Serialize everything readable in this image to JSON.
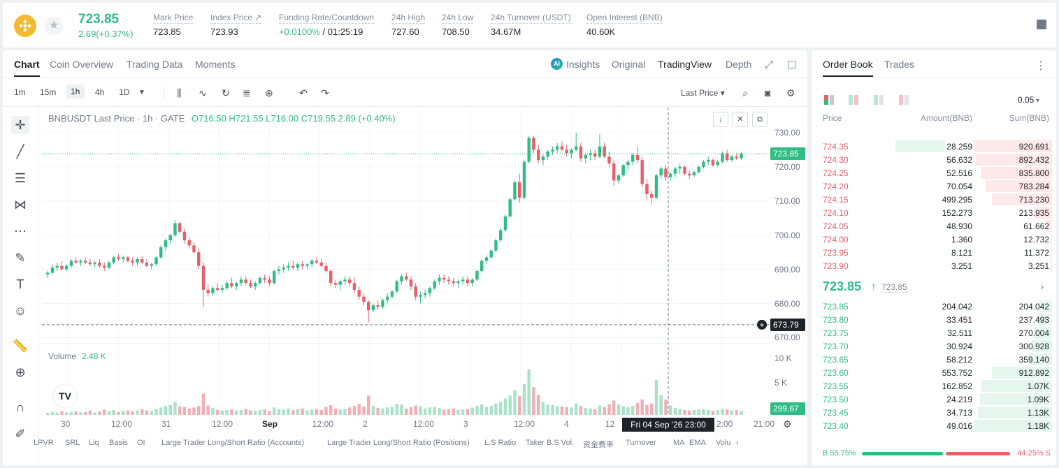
{
  "header": {
    "price": "723.85",
    "change": "2.69(+0.37%)",
    "stats": [
      {
        "label": "Mark Price",
        "value": "723.85"
      },
      {
        "label": "Index Price ↗",
        "value": "723.93"
      },
      {
        "label": "Funding Rate/Countdown",
        "value": "+0.0100%",
        "value2": " / 01:25:19"
      },
      {
        "label": "24h High",
        "value": "727.60"
      },
      {
        "label": "24h Low",
        "value": "708.50"
      },
      {
        "label": "24h Turnover (USDT)",
        "value": "34.67M"
      },
      {
        "label": "Open Interest (BNB)",
        "value": "40.60K"
      }
    ]
  },
  "chart_tabs": [
    "Chart",
    "Coin Overview",
    "Trading Data",
    "Moments"
  ],
  "view_tabs": [
    "Insights",
    "Original",
    "TradingView",
    "Depth"
  ],
  "timeframes": [
    "1m",
    "15m",
    "1h",
    "4h",
    "1D"
  ],
  "toolbar": {
    "price_type": "Last Price ▾"
  },
  "legend": {
    "symbol": "BNBUSDT Last Price · 1h · GATE",
    "ohlc": "O716.50  H721.55  L716.00  C719.55  2.89 (+0.40%)",
    "volume_label": "Volume",
    "volume_value": "2.48 K"
  },
  "yaxis": {
    "ticks": [
      "730.00",
      "720.00",
      "710.00",
      "700.00",
      "690.00",
      "680.00",
      "670.00"
    ],
    "vol_ticks": [
      "10 K",
      "5 K"
    ],
    "last_label": "723.85",
    "cross_label": "673.79",
    "vol_label": "299.67"
  },
  "xaxis": {
    "ticks": [
      "30",
      "12:00",
      "31",
      "12:00",
      "Sep",
      "12:00",
      "2",
      "12:00",
      "3",
      "12:00",
      "4",
      "12",
      "2:00",
      "21:00"
    ],
    "crosshair_time": "Fri 04 Sep '26   23:00"
  },
  "indicators": [
    "LPVR",
    "SRL",
    "Liq",
    "Basis",
    "OI",
    "Large Trader Long/Short Ratio (Accounts)",
    "Large Trader Long/Short Ratio (Positions)",
    "L.S Ratio",
    "Taker B.S Vol.",
    "资金费率",
    "Turnover",
    "MA",
    "EMA",
    "Volu",
    "›"
  ],
  "colors": {
    "up": "#2ebd85",
    "down": "#e65f6b",
    "brand": "#f3ba2f"
  },
  "chart_data": {
    "type": "candlestick",
    "symbol": "BNBUSDT",
    "interval": "1h",
    "ylim": [
      670,
      730
    ],
    "candles": [
      [
        688.5,
        689.5,
        687.5,
        689.0
      ],
      [
        689.0,
        691.5,
        688.5,
        690.5
      ],
      [
        690.5,
        692.0,
        689.5,
        691.0
      ],
      [
        691.0,
        692.5,
        690.0,
        690.0
      ],
      [
        690.0,
        691.5,
        689.5,
        691.0
      ],
      [
        691.0,
        693.0,
        690.5,
        692.5
      ],
      [
        692.5,
        693.5,
        691.5,
        692.0
      ],
      [
        692.0,
        693.0,
        691.0,
        692.5
      ],
      [
        692.5,
        693.5,
        691.5,
        692.0
      ],
      [
        692.0,
        693.0,
        691.0,
        691.5
      ],
      [
        691.5,
        692.5,
        690.5,
        692.0
      ],
      [
        692.0,
        693.0,
        690.5,
        691.0
      ],
      [
        691.0,
        692.0,
        689.5,
        690.5
      ],
      [
        690.5,
        692.5,
        690.0,
        692.0
      ],
      [
        692.0,
        694.0,
        691.5,
        693.5
      ],
      [
        693.5,
        694.5,
        692.5,
        693.0
      ],
      [
        693.0,
        694.0,
        692.0,
        693.5
      ],
      [
        693.5,
        694.0,
        692.0,
        692.5
      ],
      [
        692.5,
        693.5,
        691.0,
        692.0
      ],
      [
        692.0,
        693.5,
        691.0,
        693.0
      ],
      [
        693.0,
        694.0,
        691.5,
        692.0
      ],
      [
        692.0,
        693.0,
        690.5,
        691.0
      ],
      [
        691.0,
        692.0,
        690.0,
        691.5
      ],
      [
        691.5,
        694.0,
        691.0,
        693.5
      ],
      [
        693.5,
        697.0,
        693.0,
        696.5
      ],
      [
        696.5,
        699.0,
        695.5,
        698.5
      ],
      [
        698.5,
        700.5,
        697.5,
        700.0
      ],
      [
        700.0,
        704.5,
        699.5,
        703.5
      ],
      [
        703.5,
        704.0,
        700.5,
        701.0
      ],
      [
        701.0,
        702.0,
        697.5,
        698.5
      ],
      [
        698.5,
        699.5,
        696.0,
        697.0
      ],
      [
        697.0,
        698.0,
        694.5,
        695.0
      ],
      [
        695.0,
        696.0,
        690.0,
        691.0
      ],
      [
        691.0,
        692.0,
        679.0,
        684.0
      ],
      [
        684.0,
        685.5,
        682.0,
        683.0
      ],
      [
        683.0,
        685.0,
        682.5,
        684.5
      ],
      [
        684.5,
        686.0,
        683.5,
        684.0
      ],
      [
        684.0,
        685.5,
        683.0,
        684.5
      ],
      [
        684.5,
        686.5,
        684.0,
        686.0
      ],
      [
        686.0,
        687.5,
        684.5,
        685.0
      ],
      [
        685.0,
        686.5,
        684.0,
        686.0
      ],
      [
        686.0,
        688.0,
        685.0,
        687.0
      ],
      [
        687.0,
        688.0,
        685.5,
        686.0
      ],
      [
        686.0,
        687.0,
        684.5,
        685.0
      ],
      [
        685.0,
        686.5,
        684.0,
        686.0
      ],
      [
        686.0,
        688.0,
        685.5,
        687.5
      ],
      [
        687.5,
        688.5,
        686.0,
        687.0
      ],
      [
        687.0,
        688.0,
        685.0,
        686.0
      ],
      [
        686.0,
        690.0,
        685.5,
        689.5
      ],
      [
        689.5,
        691.0,
        688.5,
        690.0
      ],
      [
        690.0,
        691.5,
        689.0,
        690.5
      ],
      [
        690.5,
        692.0,
        689.5,
        691.0
      ],
      [
        691.0,
        692.5,
        690.0,
        690.5
      ],
      [
        690.5,
        692.0,
        689.5,
        691.5
      ],
      [
        691.5,
        692.5,
        690.0,
        691.0
      ],
      [
        691.0,
        692.0,
        690.0,
        691.5
      ],
      [
        691.5,
        693.0,
        690.5,
        692.5
      ],
      [
        692.5,
        693.5,
        691.5,
        692.0
      ],
      [
        692.0,
        693.0,
        690.5,
        691.0
      ],
      [
        691.0,
        692.0,
        689.0,
        689.5
      ],
      [
        689.5,
        690.0,
        685.0,
        686.0
      ],
      [
        686.0,
        687.0,
        684.5,
        685.5
      ],
      [
        685.5,
        687.0,
        684.0,
        686.5
      ],
      [
        686.5,
        688.0,
        685.5,
        687.0
      ],
      [
        687.0,
        688.0,
        685.0,
        686.0
      ],
      [
        686.0,
        687.5,
        683.0,
        684.0
      ],
      [
        684.0,
        685.0,
        681.0,
        682.0
      ],
      [
        682.0,
        683.0,
        679.5,
        680.5
      ],
      [
        680.5,
        681.0,
        674.5,
        678.0
      ],
      [
        678.0,
        680.0,
        677.5,
        679.5
      ],
      [
        679.5,
        681.0,
        678.0,
        679.0
      ],
      [
        679.0,
        681.5,
        678.5,
        681.0
      ],
      [
        681.0,
        683.0,
        680.0,
        682.0
      ],
      [
        682.0,
        684.0,
        681.5,
        683.5
      ],
      [
        683.5,
        687.0,
        683.0,
        686.5
      ],
      [
        686.5,
        688.5,
        685.5,
        688.0
      ],
      [
        688.0,
        689.0,
        686.5,
        687.0
      ],
      [
        687.0,
        688.0,
        684.0,
        685.0
      ],
      [
        685.0,
        686.0,
        681.0,
        682.0
      ],
      [
        682.0,
        683.5,
        680.0,
        682.5
      ],
      [
        682.5,
        684.0,
        681.5,
        683.0
      ],
      [
        683.0,
        685.0,
        682.0,
        684.5
      ],
      [
        684.5,
        687.0,
        684.0,
        686.5
      ],
      [
        686.5,
        688.5,
        685.5,
        687.5
      ],
      [
        687.5,
        688.5,
        686.0,
        687.0
      ],
      [
        687.0,
        688.0,
        685.5,
        686.5
      ],
      [
        686.5,
        687.5,
        685.0,
        686.0
      ],
      [
        686.0,
        687.0,
        684.5,
        686.5
      ],
      [
        686.5,
        688.0,
        685.5,
        687.0
      ],
      [
        687.0,
        688.0,
        685.0,
        686.0
      ],
      [
        686.0,
        687.5,
        685.0,
        687.0
      ],
      [
        687.0,
        690.0,
        686.5,
        689.5
      ],
      [
        689.5,
        693.0,
        689.0,
        692.5
      ],
      [
        692.5,
        694.0,
        691.5,
        693.5
      ],
      [
        693.5,
        696.0,
        693.0,
        695.5
      ],
      [
        695.5,
        699.0,
        695.0,
        698.5
      ],
      [
        698.5,
        702.0,
        698.0,
        701.5
      ],
      [
        701.5,
        706.0,
        701.0,
        705.5
      ],
      [
        705.5,
        711.0,
        705.0,
        710.5
      ],
      [
        710.5,
        716.0,
        710.0,
        715.5
      ],
      [
        715.5,
        718.0,
        709.5,
        711.0
      ],
      [
        711.0,
        722.0,
        710.5,
        721.5
      ],
      [
        721.5,
        729.0,
        721.0,
        728.5
      ],
      [
        728.5,
        729.0,
        724.0,
        725.0
      ],
      [
        725.0,
        726.5,
        721.0,
        722.0
      ],
      [
        722.0,
        723.5,
        720.5,
        723.0
      ],
      [
        723.0,
        725.0,
        722.0,
        724.5
      ],
      [
        724.5,
        726.0,
        723.5,
        725.0
      ],
      [
        725.0,
        727.0,
        724.0,
        726.0
      ],
      [
        726.0,
        727.5,
        724.5,
        725.0
      ],
      [
        725.0,
        726.5,
        723.0,
        724.0
      ],
      [
        724.0,
        725.5,
        722.5,
        725.0
      ],
      [
        725.0,
        730.0,
        724.5,
        726.0
      ],
      [
        726.0,
        727.0,
        721.5,
        722.5
      ],
      [
        722.5,
        724.0,
        721.0,
        723.5
      ],
      [
        723.5,
        725.0,
        722.0,
        724.0
      ],
      [
        724.0,
        725.0,
        722.0,
        723.0
      ],
      [
        723.0,
        729.5,
        722.5,
        726.0
      ],
      [
        726.0,
        727.0,
        722.5,
        723.0
      ],
      [
        723.0,
        724.5,
        720.0,
        721.0
      ],
      [
        721.0,
        722.0,
        714.5,
        716.0
      ],
      [
        716.0,
        718.0,
        715.0,
        717.5
      ],
      [
        717.5,
        721.0,
        717.0,
        720.5
      ],
      [
        720.5,
        722.0,
        719.0,
        721.5
      ],
      [
        721.5,
        724.0,
        720.5,
        723.5
      ],
      [
        723.5,
        726.0,
        721.0,
        722.0
      ],
      [
        722.0,
        723.0,
        714.0,
        715.0
      ],
      [
        715.0,
        716.5,
        710.5,
        712.0
      ],
      [
        712.0,
        713.0,
        709.0,
        711.0
      ],
      [
        711.0,
        718.0,
        710.5,
        717.5
      ],
      [
        717.5,
        720.0,
        716.5,
        719.5
      ],
      [
        719.5,
        720.5,
        716.0,
        717.0
      ],
      [
        717.0,
        718.5,
        716.0,
        718.0
      ],
      [
        718.0,
        720.0,
        717.0,
        719.5
      ],
      [
        719.5,
        721.0,
        718.0,
        720.0
      ],
      [
        720.0,
        720.5,
        717.5,
        718.0
      ],
      [
        718.0,
        719.0,
        716.5,
        717.5
      ],
      [
        717.5,
        719.0,
        717.0,
        718.5
      ],
      [
        718.5,
        720.5,
        718.0,
        720.0
      ],
      [
        720.0,
        722.0,
        719.5,
        721.5
      ],
      [
        721.5,
        723.0,
        720.5,
        722.0
      ],
      [
        722.0,
        722.5,
        720.0,
        720.5
      ],
      [
        720.5,
        722.0,
        720.0,
        721.5
      ],
      [
        721.5,
        724.5,
        721.0,
        724.0
      ],
      [
        724.0,
        725.0,
        721.5,
        722.0
      ],
      [
        722.0,
        723.5,
        721.5,
        723.0
      ],
      [
        723.0,
        724.0,
        722.0,
        722.5
      ],
      [
        722.5,
        724.5,
        722.0,
        723.85
      ]
    ],
    "volume": [
      0.4,
      0.6,
      0.5,
      0.8,
      0.5,
      0.6,
      0.7,
      0.5,
      0.6,
      0.9,
      0.5,
      0.7,
      1.1,
      0.8,
      1.0,
      0.6,
      0.8,
      0.9,
      0.7,
      0.9,
      1.2,
      0.9,
      0.8,
      1.2,
      1.5,
      1.8,
      2.0,
      2.6,
      1.7,
      1.6,
      1.3,
      1.5,
      1.8,
      4.3,
      1.9,
      1.4,
      1.0,
      0.9,
      1.0,
      1.1,
      0.9,
      1.0,
      1.2,
      0.9,
      0.8,
      1.0,
      1.1,
      0.8,
      1.5,
      1.2,
      1.1,
      1.3,
      1.0,
      1.2,
      1.3,
      0.9,
      1.1,
      1.2,
      1.0,
      1.6,
      2.0,
      1.3,
      1.1,
      1.2,
      1.5,
      1.8,
      2.2,
      1.7,
      3.9,
      1.8,
      1.4,
      1.3,
      1.5,
      1.6,
      2.2,
      2.1,
      1.3,
      1.6,
      1.9,
      1.7,
      1.3,
      1.5,
      1.6,
      1.4,
      1.1,
      1.2,
      1.3,
      1.0,
      1.1,
      1.2,
      1.5,
      1.8,
      2.1,
      1.6,
      1.8,
      2.3,
      2.6,
      3.3,
      3.9,
      5.0,
      3.8,
      6.2,
      9.2,
      5.6,
      4.0,
      2.6,
      2.1,
      2.0,
      1.8,
      1.7,
      1.6,
      1.5,
      2.3,
      1.8,
      1.4,
      1.3,
      1.2,
      1.9,
      1.6,
      2.2,
      2.9,
      2.1,
      1.8,
      1.6,
      1.8,
      2.4,
      3.1,
      2.0,
      2.3,
      7.0,
      4.0,
      3.1,
      1.9,
      1.4,
      1.2,
      1.0,
      0.9,
      1.0,
      1.1,
      1.2,
      1.0,
      0.8,
      1.0,
      1.2,
      1.1,
      0.9,
      1.0,
      0.8
    ],
    "vol_ticks": [
      10000,
      5000
    ],
    "last_price": 723.85,
    "crosshair_price": 673.79
  },
  "orderbook": {
    "tabs": [
      "Order Book",
      "Trades"
    ],
    "tick": "0.05",
    "headers": {
      "price": "Price",
      "amount": "Amount(BNB)",
      "sum": "Sum(BNB)"
    },
    "asks": [
      {
        "price": "724.35",
        "amount": "28.259",
        "sum": "920.691",
        "depth": 1.0,
        "amt_bar": 0.62
      },
      {
        "price": "724.30",
        "amount": "56.632",
        "sum": "892.432",
        "depth": 0.97,
        "amt_bar": 0
      },
      {
        "price": "724.25",
        "amount": "52.516",
        "sum": "835.800",
        "depth": 0.91,
        "amt_bar": 0
      },
      {
        "price": "724.20",
        "amount": "70.054",
        "sum": "783.284",
        "depth": 0.85,
        "amt_bar": 0
      },
      {
        "price": "724.15",
        "amount": "499.295",
        "sum": "713.230",
        "depth": 0.77,
        "amt_bar": 0
      },
      {
        "price": "724.10",
        "amount": "152.273",
        "sum": "213.935",
        "depth": 0.23,
        "amt_bar": 0
      },
      {
        "price": "724.05",
        "amount": "48.930",
        "sum": "61.662",
        "depth": 0.07,
        "amt_bar": 0
      },
      {
        "price": "724.00",
        "amount": "1.360",
        "sum": "12.732",
        "depth": 0.014,
        "amt_bar": 0
      },
      {
        "price": "723.95",
        "amount": "8.121",
        "sum": "11.372",
        "depth": 0.012,
        "amt_bar": 0
      },
      {
        "price": "723.90",
        "amount": "3.251",
        "sum": "3.251",
        "depth": 0.004,
        "amt_bar": 0
      }
    ],
    "mid_price": "723.85",
    "mid_arrow": "↑",
    "mark_price": "723.85",
    "bids": [
      {
        "price": "723.85",
        "amount": "204.042",
        "sum": "204.042",
        "depth": 0.17
      },
      {
        "price": "723.80",
        "amount": "33.451",
        "sum": "237.493",
        "depth": 0.2
      },
      {
        "price": "723.75",
        "amount": "32.511",
        "sum": "270.004",
        "depth": 0.23
      },
      {
        "price": "723.70",
        "amount": "30.924",
        "sum": "300.928",
        "depth": 0.26
      },
      {
        "price": "723.65",
        "amount": "58.212",
        "sum": "359.140",
        "depth": 0.3
      },
      {
        "price": "723.60",
        "amount": "553.752",
        "sum": "912.892",
        "depth": 0.77
      },
      {
        "price": "723.55",
        "amount": "162.852",
        "sum": "1.07K",
        "depth": 0.9
      },
      {
        "price": "723.50",
        "amount": "24.219",
        "sum": "1.09K",
        "depth": 0.92
      },
      {
        "price": "723.45",
        "amount": "34.713",
        "sum": "1.13K",
        "depth": 0.95
      },
      {
        "price": "723.40",
        "amount": "49.016",
        "sum": "1.18K",
        "depth": 1.0
      }
    ],
    "buy_ratio": "B 55.75%",
    "sell_ratio": "44.25% S"
  }
}
